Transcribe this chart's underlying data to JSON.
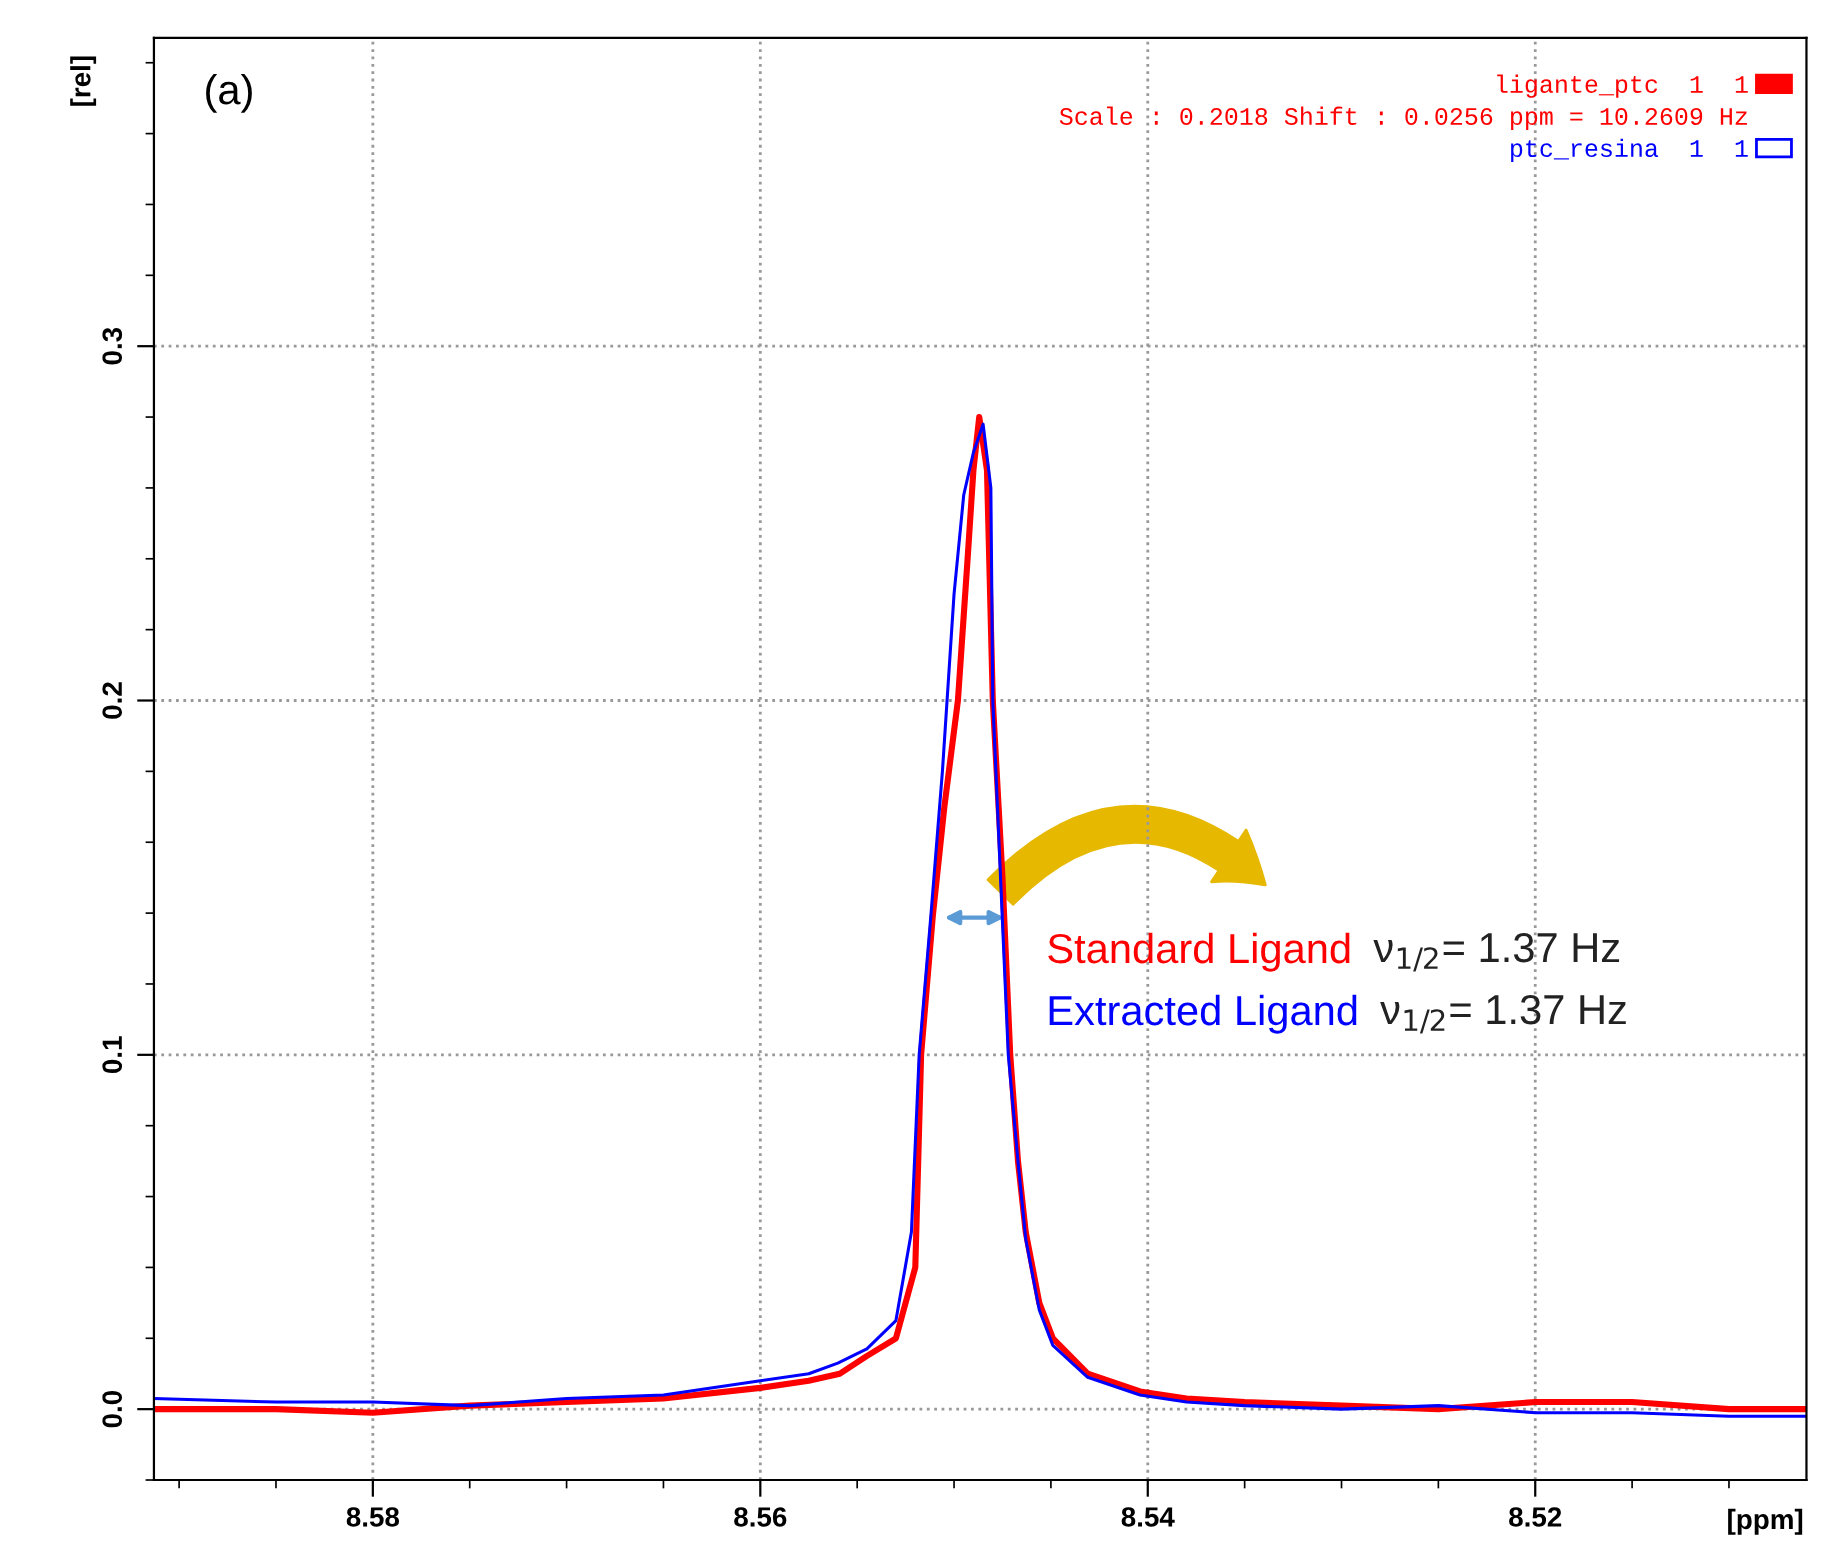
{
  "chart_data": {
    "type": "line",
    "xlabel": "[ppm]",
    "ylabel": "[rel]",
    "xlim": [
      8.5913,
      8.506
    ],
    "ylim": [
      -0.02,
      0.387
    ],
    "xticks": [
      8.58,
      8.56,
      8.54,
      8.52
    ],
    "yticks": [
      {
        "value": 0,
        "label": "0.0"
      },
      {
        "value": 0.1,
        "label": "0.1"
      },
      {
        "value": 0.2,
        "label": "0.2"
      },
      {
        "value": 0.3,
        "label": "0.3"
      }
    ],
    "grid": true,
    "legend": "top right",
    "marker": "none",
    "line_style": "solid",
    "annotations": [
      "(a)",
      "Scale : 0.2018 Shift : 0.0256 ppm = 10.2609 Hz",
      "Standard Ligand",
      "ν$_{1/2}$= 1.37 Hz",
      "Extracted Ligand",
      "ν$_{1/2}$= 1.37 Hz"
    ],
    "series": [
      {
        "name": "ligante_ptc  1  1",
        "color": "#ff0000",
        "x": [
          8.5913,
          8.585,
          8.58,
          8.575,
          8.57,
          8.565,
          8.56,
          8.5575,
          8.5559,
          8.5545,
          8.553,
          8.552,
          8.5517,
          8.5511,
          8.5505,
          8.5498,
          8.5493,
          8.549,
          8.5487,
          8.5483,
          8.548,
          8.5475,
          8.5471,
          8.5467,
          8.5463,
          8.5456,
          8.5449,
          8.5431,
          8.5404,
          8.538,
          8.535,
          8.53,
          8.525,
          8.52,
          8.515,
          8.51,
          8.506
        ],
        "values": [
          0.0,
          0.0,
          -0.001,
          0.001,
          0.002,
          0.003,
          0.006,
          0.008,
          0.01,
          0.015,
          0.02,
          0.04,
          0.1,
          0.139,
          0.17,
          0.2,
          0.24,
          0.265,
          0.28,
          0.265,
          0.2,
          0.15,
          0.1,
          0.07,
          0.05,
          0.03,
          0.02,
          0.01,
          0.005,
          0.003,
          0.002,
          0.001,
          0.0,
          0.002,
          0.002,
          0.0,
          0.0
        ]
      },
      {
        "name": "ptc_resina  1  1",
        "color": "#0000ff",
        "x": [
          8.5913,
          8.585,
          8.58,
          8.575,
          8.57,
          8.565,
          8.56,
          8.5575,
          8.556,
          8.5545,
          8.553,
          8.5522,
          8.5518,
          8.5512,
          8.5506,
          8.55,
          8.5495,
          8.549,
          8.5485,
          8.5481,
          8.548,
          8.5476,
          8.5472,
          8.5467,
          8.5463,
          8.5456,
          8.5449,
          8.5431,
          8.5404,
          8.538,
          8.535,
          8.53,
          8.525,
          8.52,
          8.515,
          8.51,
          8.506
        ],
        "values": [
          0.003,
          0.002,
          0.002,
          0.001,
          0.003,
          0.004,
          0.008,
          0.01,
          0.013,
          0.017,
          0.025,
          0.05,
          0.1,
          0.139,
          0.18,
          0.23,
          0.258,
          0.27,
          0.278,
          0.26,
          0.2,
          0.15,
          0.1,
          0.07,
          0.048,
          0.028,
          0.018,
          0.009,
          0.004,
          0.002,
          0.001,
          0.0,
          0.001,
          -0.001,
          -0.001,
          -0.002,
          -0.002
        ]
      }
    ]
  }
}
